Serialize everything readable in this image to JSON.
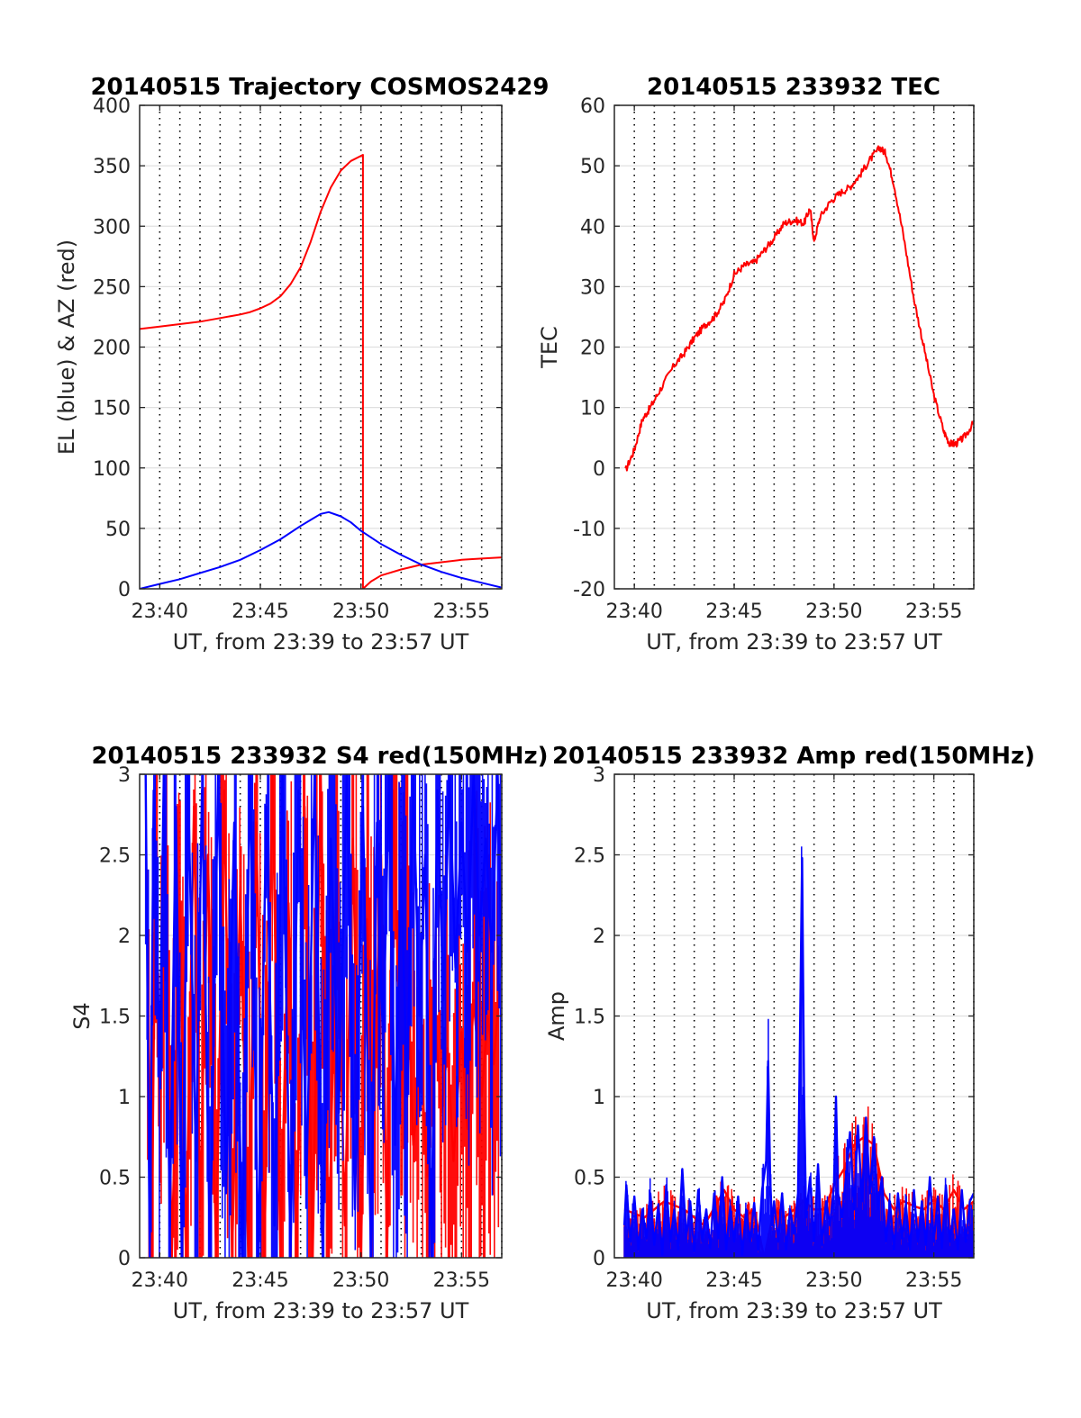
{
  "chart_data": [
    {
      "id": "trajectory",
      "type": "line",
      "title": "20140515 Trajectory COSMOS2429",
      "xlabel": "UT, from 23:39 to 23:57 UT",
      "ylabel": "EL (blue) & AZ (red)",
      "xlim_minutes": [
        39.0,
        57.0
      ],
      "ylim": [
        0,
        400
      ],
      "xticks": [
        {
          "v": 40,
          "label": "23:40"
        },
        {
          "v": 45,
          "label": "23:45"
        },
        {
          "v": 50,
          "label": "23:50"
        },
        {
          "v": 55,
          "label": "23:55"
        }
      ],
      "yticks": [
        {
          "v": 0,
          "label": "0"
        },
        {
          "v": 50,
          "label": "50"
        },
        {
          "v": 100,
          "label": "100"
        },
        {
          "v": 150,
          "label": "150"
        },
        {
          "v": 200,
          "label": "200"
        },
        {
          "v": 250,
          "label": "250"
        },
        {
          "v": 300,
          "label": "300"
        },
        {
          "v": 350,
          "label": "350"
        },
        {
          "v": 400,
          "label": "400"
        }
      ],
      "grid": "y solid, x dotted every 1 minute",
      "series": [
        {
          "color": "#ff0000",
          "x": [
            39.0,
            40,
            41,
            42,
            43,
            44,
            44.5,
            45,
            45.5,
            46,
            46.5,
            47,
            47.5,
            48,
            48.5,
            49,
            49.5,
            50.1,
            50.1,
            50.5,
            51,
            52,
            53,
            54,
            55,
            56,
            57.0
          ],
          "y": [
            215,
            217,
            219,
            221,
            224,
            227,
            229,
            232,
            236,
            242,
            252,
            266,
            287,
            312,
            332,
            346,
            354,
            359,
            0,
            6,
            11,
            16,
            20,
            22,
            24,
            25,
            26
          ]
        },
        {
          "color": "#0000ff",
          "x": [
            39.0,
            40,
            41,
            42,
            43,
            44,
            45,
            46,
            47,
            47.5,
            48,
            48.4,
            49,
            49.5,
            50,
            51,
            52,
            53,
            54,
            55,
            56,
            57.0
          ],
          "y": [
            0,
            4,
            8,
            13,
            18,
            24,
            32,
            41,
            52,
            57,
            62,
            63.5,
            60,
            55,
            48,
            37,
            28,
            20,
            14,
            9,
            5,
            1
          ]
        }
      ]
    },
    {
      "id": "tec",
      "type": "line",
      "title": "20140515 233932 TEC",
      "xlabel": "UT, from 23:39 to 23:57 UT",
      "ylabel": "TEC",
      "xlim_minutes": [
        39.0,
        57.0
      ],
      "ylim": [
        -20,
        60
      ],
      "xticks": [
        {
          "v": 40,
          "label": "23:40"
        },
        {
          "v": 45,
          "label": "23:45"
        },
        {
          "v": 50,
          "label": "23:50"
        },
        {
          "v": 55,
          "label": "23:55"
        }
      ],
      "yticks": [
        {
          "v": -20,
          "label": "-20"
        },
        {
          "v": -10,
          "label": "-10"
        },
        {
          "v": 0,
          "label": "0"
        },
        {
          "v": 10,
          "label": "10"
        },
        {
          "v": 20,
          "label": "20"
        },
        {
          "v": 30,
          "label": "30"
        },
        {
          "v": 40,
          "label": "40"
        },
        {
          "v": 50,
          "label": "50"
        },
        {
          "v": 60,
          "label": "60"
        }
      ],
      "grid": "y solid, x dotted every 1 minute",
      "series": [
        {
          "color": "#ff0000",
          "x": [
            39.55,
            40.0,
            40.4,
            40.8,
            41.3,
            42.0,
            42.5,
            43.0,
            43.5,
            44.0,
            44.5,
            45.0,
            45.5,
            46.0,
            46.5,
            47.0,
            47.5,
            48.0,
            48.5,
            48.8,
            49.0,
            49.3,
            49.8,
            50.3,
            50.8,
            51.3,
            51.8,
            52.3,
            52.6,
            53.0,
            53.5,
            54.0,
            54.5,
            55.0,
            55.5,
            55.8,
            56.1,
            56.5,
            57.0
          ],
          "y": [
            -0.5,
            3,
            8,
            10,
            13,
            17,
            19,
            21.5,
            23.5,
            25,
            27.5,
            32,
            33.5,
            34,
            36,
            38,
            40.5,
            41,
            40.5,
            43,
            37.5,
            41.5,
            44,
            45.5,
            46.5,
            48.5,
            51,
            53,
            52,
            47,
            38,
            28,
            20,
            12,
            6,
            4,
            4,
            5,
            7.5
          ]
        }
      ]
    },
    {
      "id": "s4",
      "type": "line",
      "title": "20140515 233932 S4 red(150MHz)",
      "xlabel": "UT, from 23:39 to 23:57 UT",
      "ylabel": "S4",
      "xlim_minutes": [
        39.0,
        57.0
      ],
      "ylim": [
        0,
        3
      ],
      "xticks": [
        {
          "v": 40,
          "label": "23:40"
        },
        {
          "v": 45,
          "label": "23:45"
        },
        {
          "v": 50,
          "label": "23:50"
        },
        {
          "v": 55,
          "label": "23:55"
        }
      ],
      "yticks": [
        {
          "v": 0,
          "label": "0"
        },
        {
          "v": 0.5,
          "label": "0.5"
        },
        {
          "v": 1,
          "label": "1"
        },
        {
          "v": 1.5,
          "label": "1.5"
        },
        {
          "v": 2,
          "label": "2"
        },
        {
          "v": 2.5,
          "label": "2.5"
        },
        {
          "v": 3,
          "label": "3"
        }
      ],
      "grid": "y solid, x dotted every 1 minute",
      "series": [
        {
          "color": "#ff0000",
          "x": [
            39.4,
            39.6,
            39.8,
            40.0,
            40.3,
            40.6,
            41.0,
            41.3,
            41.7,
            42.0,
            42.4,
            42.8,
            43.2,
            43.6,
            44.0,
            44.4,
            44.8,
            45.2,
            45.6,
            46.0,
            46.4,
            46.8,
            47.2,
            47.6,
            48.0,
            48.4,
            48.8,
            49.2,
            49.6,
            50.0,
            50.3,
            50.6,
            51.0,
            51.3,
            51.6,
            52.0,
            52.3,
            52.6,
            53.0,
            53.3,
            53.6,
            54.0,
            54.3,
            54.6,
            55.0,
            55.3,
            55.6,
            56.0,
            56.3,
            56.6,
            56.9
          ],
          "y": [
            1.9,
            0.0,
            2.6,
            0.9,
            2.4,
            0.0,
            2.2,
            0.0,
            2.8,
            0.3,
            2.5,
            0.0,
            2.9,
            0.0,
            2.3,
            0.0,
            2.7,
            0.0,
            3.0,
            0.0,
            2.2,
            0.0,
            2.8,
            0.0,
            3.0,
            0.0,
            2.4,
            0.2,
            2.6,
            0.0,
            2.1,
            0.8,
            2.5,
            0.0,
            2.9,
            1.0,
            1.9,
            0.7,
            1.2,
            0.5,
            1.6,
            0.9,
            1.3,
            0.6,
            1.4,
            0.8,
            1.6,
            1.0,
            1.5,
            1.2,
            1.7
          ]
        },
        {
          "color": "#0000ff",
          "x": [
            39.3,
            39.5,
            39.7,
            40.0,
            40.2,
            40.5,
            40.8,
            41.1,
            41.4,
            41.8,
            42.1,
            42.5,
            42.9,
            43.3,
            43.7,
            44.1,
            44.5,
            44.9,
            45.3,
            45.7,
            46.1,
            46.5,
            46.9,
            47.3,
            47.7,
            48.1,
            48.5,
            48.9,
            49.3,
            49.7,
            50.1,
            50.5,
            50.8,
            51.1,
            51.4,
            51.7,
            52.0,
            52.3,
            52.6,
            52.9,
            53.2,
            53.5,
            53.8,
            54.1,
            54.4,
            54.7,
            55.0,
            55.3,
            55.6,
            55.9,
            56.2,
            56.5,
            56.8,
            57.0
          ],
          "y": [
            3.0,
            0.0,
            2.9,
            1.2,
            3.0,
            0.2,
            2.8,
            0.0,
            3.0,
            0.6,
            2.9,
            0.0,
            3.0,
            0.4,
            2.7,
            0.0,
            3.0,
            0.0,
            2.8,
            0.2,
            3.0,
            0.0,
            2.9,
            0.5,
            3.0,
            0.0,
            2.6,
            0.9,
            3.0,
            0.3,
            2.8,
            0.0,
            2.7,
            1.3,
            3.0,
            0.7,
            2.4,
            1.0,
            3.0,
            1.5,
            2.5,
            0.0,
            2.9,
            1.6,
            3.0,
            1.8,
            2.7,
            1.9,
            3.0,
            2.0,
            2.6,
            1.9,
            3.0,
            1.8
          ]
        }
      ]
    },
    {
      "id": "amp",
      "type": "line",
      "title": "20140515 233932 Amp red(150MHz)",
      "xlabel": "UT, from 23:39 to 23:57 UT",
      "ylabel": "Amp",
      "xlim_minutes": [
        39.0,
        57.0
      ],
      "ylim": [
        0,
        3
      ],
      "xticks": [
        {
          "v": 40,
          "label": "23:40"
        },
        {
          "v": 45,
          "label": "23:45"
        },
        {
          "v": 50,
          "label": "23:50"
        },
        {
          "v": 55,
          "label": "23:55"
        }
      ],
      "yticks": [
        {
          "v": 0,
          "label": "0"
        },
        {
          "v": 0.5,
          "label": "0.5"
        },
        {
          "v": 1,
          "label": "1"
        },
        {
          "v": 1.5,
          "label": "1.5"
        },
        {
          "v": 2,
          "label": "2"
        },
        {
          "v": 2.5,
          "label": "2.5"
        },
        {
          "v": 3,
          "label": "3"
        }
      ],
      "grid": "y solid, x dotted every 1 minute",
      "series": [
        {
          "color": "#ff0000",
          "x": [
            39.5,
            40.5,
            41.5,
            42.5,
            43.5,
            44.5,
            45.0,
            45.5,
            46.0,
            46.5,
            47.0,
            47.5,
            48.0,
            48.5,
            49.0,
            49.5,
            50.0,
            50.5,
            51.0,
            51.5,
            52.0,
            52.5,
            53.0,
            53.5,
            54.0,
            54.5,
            55.0,
            55.5,
            56.0,
            56.5,
            57.0
          ],
          "y": [
            0.3,
            0.25,
            0.35,
            0.3,
            0.2,
            0.42,
            0.3,
            0.25,
            0.3,
            0.0,
            0.3,
            0.25,
            0.3,
            0.35,
            0.3,
            0.3,
            0.45,
            0.55,
            0.7,
            0.75,
            0.7,
            0.4,
            0.3,
            0.35,
            0.32,
            0.3,
            0.36,
            0.3,
            0.42,
            0.3,
            0.35
          ]
        },
        {
          "color": "#0000ff",
          "x": [
            39.5,
            39.6,
            39.8,
            40.0,
            40.2,
            40.4,
            40.6,
            40.8,
            41.0,
            41.2,
            41.4,
            41.6,
            41.8,
            42.0,
            42.2,
            42.4,
            42.6,
            42.8,
            43.0,
            43.2,
            43.4,
            43.6,
            43.8,
            44.0,
            44.2,
            44.4,
            44.6,
            44.8,
            45.0,
            45.2,
            45.4,
            45.6,
            45.8,
            46.0,
            46.2,
            46.4,
            46.6,
            46.7,
            46.8,
            46.9,
            47.0,
            47.2,
            47.4,
            47.6,
            47.8,
            48.0,
            48.2,
            48.3,
            48.4,
            48.5,
            48.6,
            48.8,
            49.0,
            49.2,
            49.4,
            49.6,
            49.8,
            50.0,
            50.1,
            50.2,
            50.4,
            50.6,
            50.8,
            51.0,
            51.2,
            51.4,
            51.6,
            51.8,
            52.0,
            52.2,
            52.4,
            52.6,
            52.8,
            53.0,
            53.2,
            53.4,
            53.6,
            53.8,
            54.0,
            54.2,
            54.4,
            54.6,
            54.8,
            55.0,
            55.2,
            55.4,
            55.6,
            55.8,
            56.0,
            56.2,
            56.4,
            56.6,
            56.8,
            57.0
          ],
          "y": [
            0.2,
            0.45,
            0.1,
            0.38,
            0.05,
            0.3,
            0.12,
            0.4,
            0.08,
            0.33,
            0.02,
            0.45,
            0.1,
            0.3,
            0.05,
            0.55,
            0.12,
            0.35,
            0.04,
            0.42,
            0.1,
            0.3,
            0.06,
            0.4,
            0.12,
            0.5,
            0.05,
            0.32,
            0.1,
            0.38,
            0.02,
            0.3,
            0.1,
            0.34,
            0.05,
            0.42,
            0.6,
            1.22,
            0.5,
            0.2,
            0.35,
            0.1,
            0.4,
            0.05,
            0.3,
            0.15,
            0.4,
            1.4,
            2.48,
            1.0,
            0.25,
            0.5,
            0.1,
            0.58,
            0.08,
            0.35,
            0.2,
            0.45,
            1.0,
            0.4,
            0.25,
            0.5,
            0.78,
            0.3,
            0.82,
            0.35,
            0.87,
            0.4,
            0.75,
            0.3,
            0.5,
            0.1,
            0.35,
            0.05,
            0.4,
            0.12,
            0.33,
            0.05,
            0.42,
            0.1,
            0.35,
            0.08,
            0.5,
            0.1,
            0.38,
            0.06,
            0.45,
            0.1,
            0.3,
            0.05,
            0.42,
            0.1,
            0.35,
            0.4
          ]
        }
      ]
    }
  ]
}
